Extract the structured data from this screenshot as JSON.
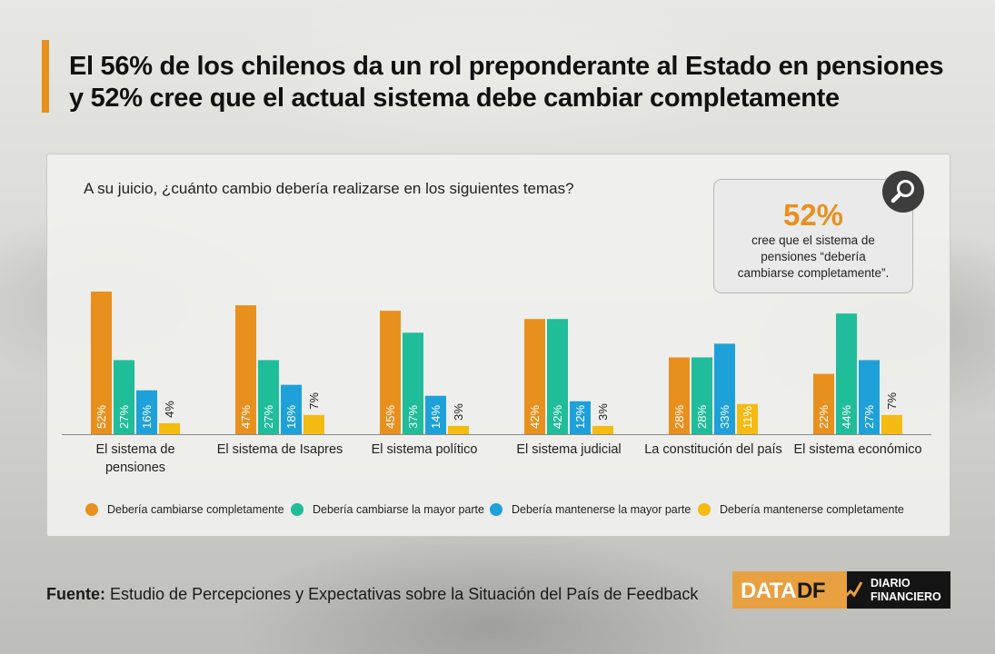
{
  "title_line1": "El 56% de los chilenos da un rol preponderante al Estado en pensiones",
  "title_line2": "y 52% cree que el actual sistema debe cambiar completamente",
  "question": "A su juicio, ¿cuánto cambio debería realizarse en los siguientes temas?",
  "callout": {
    "value": "52%",
    "line1": "cree que el sistema de",
    "line2": "pensiones “debería",
    "line3": "cambiarse completamente”."
  },
  "footer": {
    "label": "Fuente:",
    "text": "Estudio de Percepciones y Expectativas sobre la Situación del País de Feedback"
  },
  "logo": {
    "data": "DATA",
    "df": "DF",
    "diario": "DIARIO",
    "financiero": "FINANCIERO"
  },
  "colors": {
    "accent": "#e8901e",
    "cambiarse_completamente": "#e8901e",
    "cambiarse_mayor_parte": "#1fbd99",
    "mantenerse_mayor_parte": "#1ea1d8",
    "mantenerse_completamente": "#f4bb12"
  },
  "icons": [
    "search-icon"
  ],
  "chart_data": {
    "type": "bar",
    "title": "A su juicio, ¿cuánto cambio debería realizarse en los siguientes temas?",
    "categories": [
      [
        "El sistema de",
        "pensiones"
      ],
      [
        "El sistema de Isapres"
      ],
      [
        "El sistema político"
      ],
      [
        "El sistema judicial"
      ],
      [
        "La constitución del país"
      ],
      [
        "El sistema económico"
      ]
    ],
    "series": [
      {
        "name": "Debería cambiarse completamente",
        "color": "#e8901e",
        "values": [
          52,
          47,
          45,
          42,
          28,
          22
        ]
      },
      {
        "name": "Debería cambiarse la mayor parte",
        "color": "#1fbd99",
        "values": [
          27,
          27,
          37,
          42,
          28,
          44
        ]
      },
      {
        "name": "Debería mantenerse la mayor parte",
        "color": "#1ea1d8",
        "values": [
          16,
          18,
          14,
          12,
          33,
          27
        ]
      },
      {
        "name": "Debería mantenerse completamente",
        "color": "#f4bb12",
        "values": [
          4,
          7,
          3,
          3,
          11,
          7
        ]
      }
    ],
    "value_suffix": "%",
    "ylim": [
      0,
      52
    ],
    "grid": false,
    "legend_position": "bottom"
  }
}
